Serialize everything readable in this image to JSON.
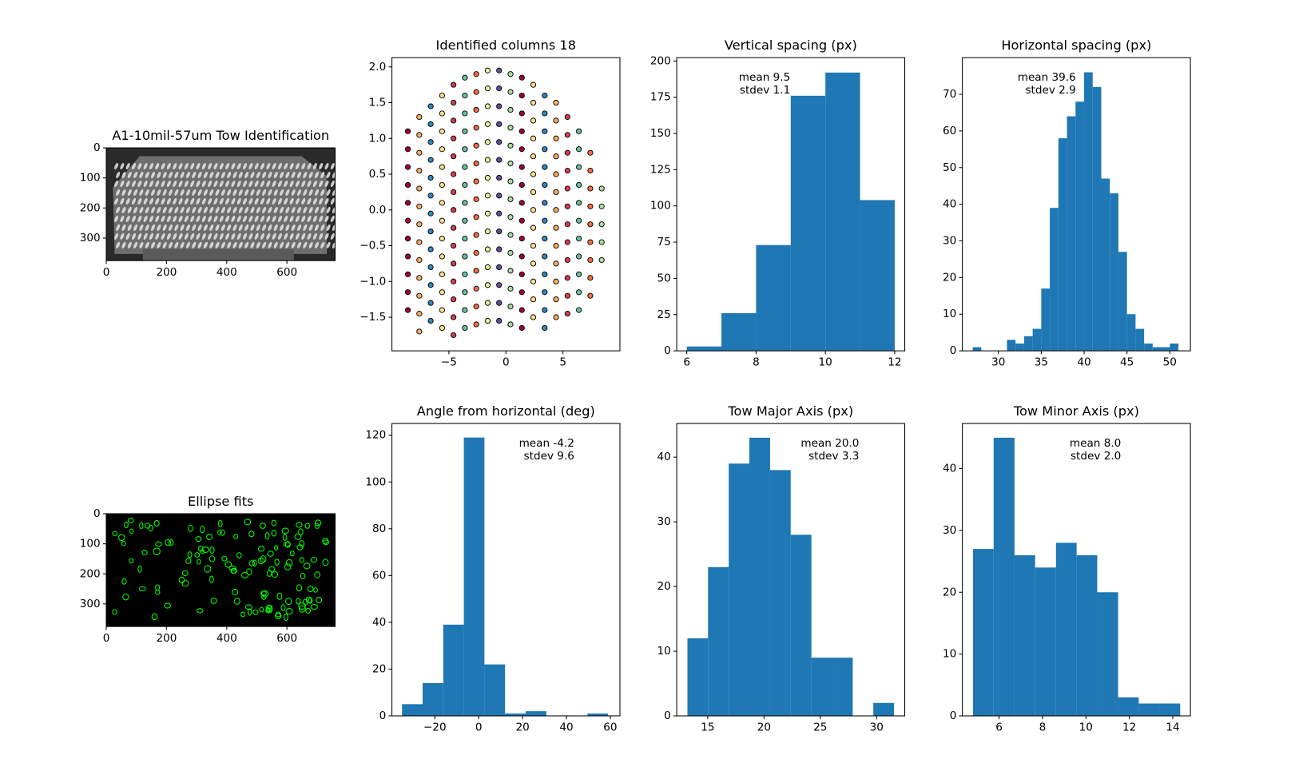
{
  "chart_data": [
    {
      "type": "image",
      "title": "A1-10mil-57um Tow Identification",
      "colormap": "gray",
      "xlim": [
        0,
        760
      ],
      "ylim": [
        375,
        0
      ],
      "xticks": [
        0,
        200,
        400,
        600
      ],
      "yticks": [
        0,
        100,
        200,
        300
      ]
    },
    {
      "type": "image",
      "title": "Ellipse fits",
      "color": "#00ff00",
      "xlim": [
        0,
        760
      ],
      "ylim": [
        375,
        0
      ],
      "xticks": [
        0,
        200,
        400,
        600
      ],
      "yticks": [
        0,
        100,
        200,
        300
      ]
    },
    {
      "type": "scatter",
      "title": "Identified columns 18",
      "xlim": [
        -10,
        10
      ],
      "ylim": [
        -1.97,
        2.13
      ],
      "xticks": [
        {
          "value": -5,
          "label": "−5"
        },
        0,
        5
      ],
      "yticks": [
        {
          "value": -1.5,
          "label": "−1.5"
        },
        {
          "value": -1,
          "label": "−1.0"
        },
        {
          "value": -0.5,
          "label": "−0.5"
        },
        {
          "value": 0,
          "label": "0.0"
        },
        0.5,
        {
          "value": 1,
          "label": "1.0"
        },
        1.5,
        {
          "value": 2,
          "label": "2.0"
        }
      ],
      "series": [
        {
          "color": "#9e0142",
          "x": [
            -8.6,
            -8.6,
            -8.6,
            -8.6,
            -8.6,
            -8.6,
            -8.6,
            -8.6,
            -8.6,
            -8.6,
            -8.6
          ],
          "y": [
            1.1,
            0.85,
            0.6,
            0.35,
            0.1,
            -0.15,
            -0.4,
            -0.65,
            -0.9,
            -1.15,
            -1.4
          ]
        },
        {
          "color": "#fdae61",
          "x": [
            -7.6,
            -7.6,
            -7.6,
            -7.6,
            -7.6,
            -7.6,
            -7.6,
            -7.6,
            -7.6,
            -7.6,
            -7.6,
            -7.6,
            -7.6
          ],
          "y": [
            1.3,
            1.05,
            0.8,
            0.55,
            0.3,
            0.05,
            -0.2,
            -0.45,
            -0.7,
            -0.95,
            -1.2,
            -1.45,
            -1.7
          ]
        },
        {
          "color": "#3288bd",
          "x": [
            -6.6,
            -6.6,
            -6.6,
            -6.6,
            -6.6,
            -6.6,
            -6.6,
            -6.6,
            -6.6,
            -6.6,
            -6.6,
            -6.6,
            -6.6
          ],
          "y": [
            1.45,
            1.2,
            0.95,
            0.7,
            0.45,
            0.2,
            -0.05,
            -0.3,
            -0.55,
            -0.8,
            -1.05,
            -1.3,
            -1.55
          ]
        },
        {
          "color": "#fee08b",
          "x": [
            -5.6,
            -5.6,
            -5.6,
            -5.6,
            -5.6,
            -5.6,
            -5.6,
            -5.6,
            -5.6,
            -5.6,
            -5.6,
            -5.6,
            -5.6,
            -5.6
          ],
          "y": [
            1.6,
            1.35,
            1.1,
            0.85,
            0.6,
            0.35,
            0.1,
            -0.15,
            -0.4,
            -0.65,
            -0.9,
            -1.15,
            -1.4,
            -1.65
          ]
        },
        {
          "color": "#d53e4f",
          "x": [
            -4.6,
            -4.6,
            -4.6,
            -4.6,
            -4.6,
            -4.6,
            -4.6,
            -4.6,
            -4.6,
            -4.6,
            -4.6,
            -4.6,
            -4.6,
            -4.6,
            -4.6
          ],
          "y": [
            1.75,
            1.5,
            1.25,
            1.0,
            0.75,
            0.5,
            0.25,
            0,
            -0.25,
            -0.5,
            -0.75,
            -1.0,
            -1.25,
            -1.5,
            -1.75
          ]
        },
        {
          "color": "#66c2a5",
          "x": [
            -3.6,
            -3.6,
            -3.6,
            -3.6,
            -3.6,
            -3.6,
            -3.6,
            -3.6,
            -3.6,
            -3.6,
            -3.6,
            -3.6,
            -3.6,
            -3.6,
            -3.6
          ],
          "y": [
            1.85,
            1.6,
            1.35,
            1.1,
            0.85,
            0.6,
            0.35,
            0.1,
            -0.15,
            -0.4,
            -0.65,
            -0.9,
            -1.15,
            -1.4,
            -1.65
          ]
        },
        {
          "color": "#f46d43",
          "x": [
            -2.6,
            -2.6,
            -2.6,
            -2.6,
            -2.6,
            -2.6,
            -2.6,
            -2.6,
            -2.6,
            -2.6,
            -2.6,
            -2.6,
            -2.6,
            -2.6,
            -2.6
          ],
          "y": [
            1.9,
            1.65,
            1.4,
            1.15,
            0.9,
            0.65,
            0.4,
            0.15,
            -0.1,
            -0.35,
            -0.6,
            -0.85,
            -1.1,
            -1.35,
            -1.6
          ]
        },
        {
          "color": "#e6f598",
          "x": [
            -1.6,
            -1.6,
            -1.6,
            -1.6,
            -1.6,
            -1.6,
            -1.6,
            -1.6,
            -1.6,
            -1.6,
            -1.6,
            -1.6,
            -1.6,
            -1.6,
            -1.6
          ],
          "y": [
            1.95,
            1.7,
            1.45,
            1.2,
            0.95,
            0.7,
            0.45,
            0.2,
            -0.05,
            -0.3,
            -0.55,
            -0.8,
            -1.05,
            -1.3,
            -1.55
          ]
        },
        {
          "color": "#5e4fa2",
          "x": [
            -0.6,
            -0.6,
            -0.6,
            -0.6,
            -0.6,
            -0.6,
            -0.6,
            -0.6,
            -0.6,
            -0.6,
            -0.6,
            -0.6,
            -0.6,
            -0.6,
            -0.6
          ],
          "y": [
            1.95,
            1.7,
            1.45,
            1.2,
            0.95,
            0.7,
            0.45,
            0.2,
            -0.05,
            -0.3,
            -0.55,
            -0.8,
            -1.05,
            -1.3,
            -1.55
          ]
        },
        {
          "color": "#abdda4",
          "x": [
            0.4,
            0.4,
            0.4,
            0.4,
            0.4,
            0.4,
            0.4,
            0.4,
            0.4,
            0.4,
            0.4,
            0.4,
            0.4,
            0.4,
            0.4
          ],
          "y": [
            1.9,
            1.65,
            1.4,
            1.15,
            0.9,
            0.65,
            0.4,
            0.15,
            -0.1,
            -0.35,
            -0.6,
            -0.85,
            -1.1,
            -1.35,
            -1.6
          ]
        },
        {
          "color": "#9e0142",
          "x": [
            1.4,
            1.4,
            1.4,
            1.4,
            1.4,
            1.4,
            1.4,
            1.4,
            1.4,
            1.4,
            1.4,
            1.4,
            1.4,
            1.4,
            1.4
          ],
          "y": [
            1.85,
            1.6,
            1.35,
            1.1,
            0.85,
            0.6,
            0.35,
            0.1,
            -0.15,
            -0.4,
            -0.65,
            -0.9,
            -1.15,
            -1.4,
            -1.65
          ]
        },
        {
          "color": "#fee08b",
          "x": [
            2.4,
            2.4,
            2.4,
            2.4,
            2.4,
            2.4,
            2.4,
            2.4,
            2.4,
            2.4,
            2.4,
            2.4,
            2.4,
            2.4
          ],
          "y": [
            1.75,
            1.5,
            1.25,
            1.0,
            0.75,
            0.5,
            0.25,
            0,
            -0.25,
            -0.5,
            -0.75,
            -1.0,
            -1.25,
            -1.5
          ]
        },
        {
          "color": "#3288bd",
          "x": [
            3.4,
            3.4,
            3.4,
            3.4,
            3.4,
            3.4,
            3.4,
            3.4,
            3.4,
            3.4,
            3.4,
            3.4,
            3.4,
            3.4
          ],
          "y": [
            1.6,
            1.35,
            1.1,
            0.85,
            0.6,
            0.35,
            0.1,
            -0.15,
            -0.4,
            -0.65,
            -0.9,
            -1.15,
            -1.4,
            -1.65
          ]
        },
        {
          "color": "#fdae61",
          "x": [
            4.4,
            4.4,
            4.4,
            4.4,
            4.4,
            4.4,
            4.4,
            4.4,
            4.4,
            4.4,
            4.4,
            4.4,
            4.4
          ],
          "y": [
            1.5,
            1.25,
            1.0,
            0.75,
            0.5,
            0.25,
            0,
            -0.25,
            -0.5,
            -0.75,
            -1.0,
            -1.25,
            -1.5
          ]
        },
        {
          "color": "#d53e4f",
          "x": [
            5.4,
            5.4,
            5.4,
            5.4,
            5.4,
            5.4,
            5.4,
            5.4,
            5.4,
            5.4,
            5.4,
            5.4
          ],
          "y": [
            1.3,
            1.05,
            0.8,
            0.55,
            0.3,
            0.05,
            -0.2,
            -0.45,
            -0.7,
            -0.95,
            -1.2,
            -1.45
          ]
        },
        {
          "color": "#66c2a5",
          "x": [
            6.4,
            6.4,
            6.4,
            6.4,
            6.4,
            6.4,
            6.4,
            6.4,
            6.4,
            6.4,
            6.4
          ],
          "y": [
            1.1,
            0.85,
            0.6,
            0.35,
            0.1,
            -0.15,
            -0.4,
            -0.65,
            -0.9,
            -1.15,
            -1.4
          ]
        },
        {
          "color": "#f46d43",
          "x": [
            7.4,
            7.4,
            7.4,
            7.4,
            7.4,
            7.4,
            7.4,
            7.4,
            7.4
          ],
          "y": [
            0.8,
            0.55,
            0.3,
            0.05,
            -0.2,
            -0.45,
            -0.7,
            -0.95,
            -1.2
          ]
        },
        {
          "color": "#abdda4",
          "x": [
            8.4,
            8.4,
            8.4,
            8.4,
            8.4
          ],
          "y": [
            0.3,
            0.05,
            -0.2,
            -0.45,
            -0.7
          ]
        }
      ]
    },
    {
      "type": "histogram",
      "title": "Vertical spacing (px)",
      "annotation": [
        "mean 9.5",
        "stdev 1.1"
      ],
      "color": "#1f77b4",
      "bins": [
        6,
        7,
        8,
        9,
        10,
        11,
        12
      ],
      "values": [
        3,
        26,
        73,
        176,
        192,
        104
      ],
      "xlim": [
        5.71,
        12.29
      ],
      "ylim": [
        0,
        202.3
      ],
      "xticks": [
        6,
        8,
        10,
        12
      ],
      "yticks": [
        0,
        25,
        50,
        75,
        100,
        125,
        150,
        175,
        200
      ]
    },
    {
      "type": "histogram",
      "title": "Horizontal spacing (px)",
      "annotation": [
        "mean 39.6",
        "stdev 2.9"
      ],
      "color": "#1f77b4",
      "bins": [
        27,
        28,
        29,
        30,
        31,
        32,
        33,
        34,
        35,
        36,
        37,
        38,
        39,
        40,
        41,
        42,
        43,
        44,
        45,
        46,
        47,
        48,
        49,
        50,
        51
      ],
      "values": [
        1,
        0,
        0,
        0,
        3,
        2,
        4,
        6,
        17,
        39,
        58,
        64,
        68,
        76,
        72,
        47,
        43,
        27,
        10,
        6,
        2,
        1,
        1,
        2
      ],
      "xlim": [
        25.8,
        52.4
      ],
      "ylim": [
        0,
        80
      ],
      "xticks": [
        30,
        35,
        40,
        45,
        50
      ],
      "yticks": [
        0,
        10,
        20,
        30,
        40,
        50,
        60,
        70
      ]
    },
    {
      "type": "histogram",
      "title": "Angle from horizontal (deg)",
      "annotation": [
        "mean -4.2",
        "stdev 9.6"
      ],
      "color": "#1f77b4",
      "bins": [
        -35,
        -25.6,
        -16.2,
        -6.8,
        2.6,
        12,
        21.4,
        30.8,
        40.2,
        49.6,
        59
      ],
      "values": [
        5,
        14,
        39,
        119,
        22,
        1,
        2,
        0,
        0,
        1
      ],
      "xlim": [
        -39.6,
        64.4
      ],
      "ylim": [
        0,
        125
      ],
      "xticks": [
        {
          "value": -20,
          "label": "−20"
        },
        0,
        20,
        40,
        60
      ],
      "yticks": [
        0,
        20,
        40,
        60,
        80,
        100,
        120
      ]
    },
    {
      "type": "histogram",
      "title": "Tow Major Axis (px)",
      "annotation": [
        "mean 20.0",
        "stdev 3.3"
      ],
      "color": "#1f77b4",
      "bins": [
        13.2,
        15.03,
        16.87,
        18.7,
        20.54,
        22.37,
        24.21,
        26.04,
        27.88,
        29.71,
        31.55
      ],
      "values": [
        12,
        23,
        39,
        43,
        38,
        28,
        9,
        9,
        0,
        2
      ],
      "xlim": [
        12.25,
        32.5
      ],
      "ylim": [
        0,
        45.2
      ],
      "xticks": [
        15,
        20,
        25,
        30
      ],
      "yticks": [
        0,
        10,
        20,
        30,
        40
      ]
    },
    {
      "type": "histogram",
      "title": "Tow Minor Axis (px)",
      "annotation": [
        "mean 8.0",
        "stdev 2.0"
      ],
      "color": "#1f77b4",
      "bins": [
        4.8,
        5.75,
        6.71,
        7.66,
        8.62,
        9.57,
        10.52,
        11.48,
        12.43,
        13.39,
        14.34
      ],
      "values": [
        27,
        45,
        26,
        24,
        28,
        26,
        20,
        3,
        2,
        2
      ],
      "xlim": [
        4.31,
        14.81
      ],
      "ylim": [
        0,
        47.3
      ],
      "xticks": [
        6,
        8,
        10,
        12,
        14
      ],
      "yticks": [
        0,
        10,
        20,
        30,
        40
      ]
    }
  ]
}
